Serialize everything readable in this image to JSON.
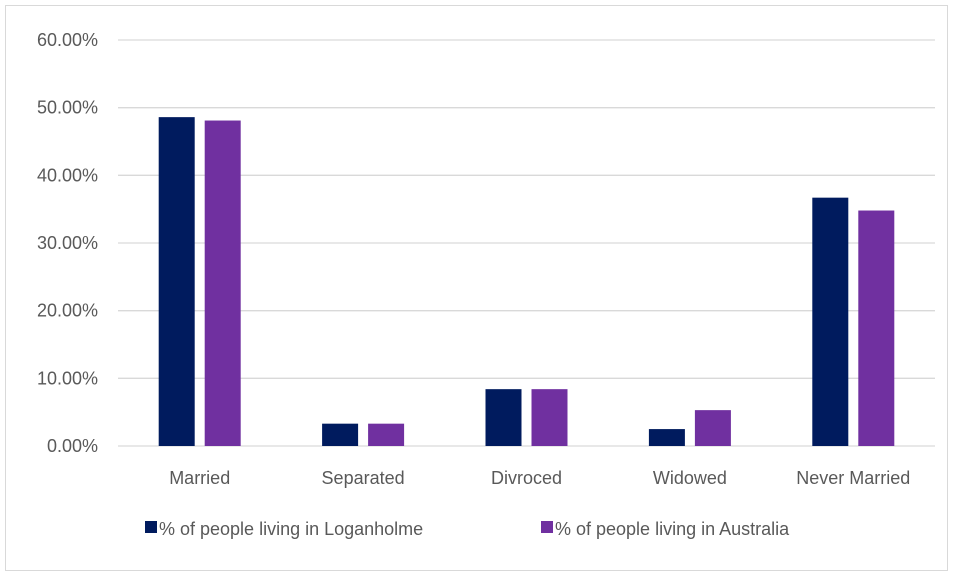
{
  "chart_data": {
    "type": "bar",
    "categories": [
      "Married",
      "Separated",
      "Divroced",
      "Widowed",
      "Never Married"
    ],
    "series": [
      {
        "name": "% of people living in Loganholme",
        "color": "#001b5e",
        "values": [
          48.6,
          3.3,
          8.4,
          2.5,
          36.7
        ]
      },
      {
        "name": "% of people living in Australia",
        "color": "#7030a0",
        "values": [
          48.1,
          3.3,
          8.4,
          5.3,
          34.8
        ]
      }
    ],
    "ylim": [
      0,
      60
    ],
    "yticks": [
      "0.00%",
      "10.00%",
      "20.00%",
      "30.00%",
      "40.00%",
      "50.00%",
      "60.00%"
    ],
    "title": "",
    "xlabel": "",
    "ylabel": "",
    "grid": true,
    "legend_position": "bottom"
  }
}
